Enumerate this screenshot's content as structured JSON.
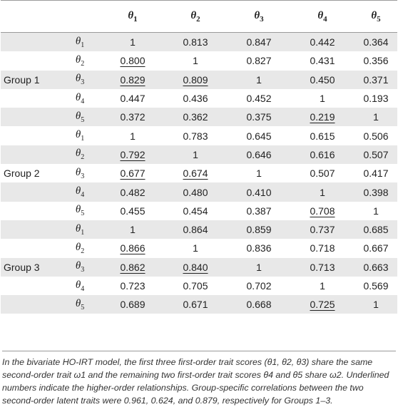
{
  "header": {
    "cols": [
      {
        "sym": "θ",
        "sub": "1"
      },
      {
        "sym": "θ",
        "sub": "2"
      },
      {
        "sym": "θ",
        "sub": "3"
      },
      {
        "sym": "θ",
        "sub": "4"
      },
      {
        "sym": "θ",
        "sub": "5"
      }
    ]
  },
  "rows": [
    {
      "group": "",
      "sym": "θ",
      "sub": "1",
      "cells": [
        {
          "v": "1"
        },
        {
          "v": "0.813"
        },
        {
          "v": "0.847"
        },
        {
          "v": "0.442"
        },
        {
          "v": "0.364"
        }
      ]
    },
    {
      "group": "",
      "sym": "θ",
      "sub": "2",
      "cells": [
        {
          "v": "0.800",
          "u": true
        },
        {
          "v": "1"
        },
        {
          "v": "0.827"
        },
        {
          "v": "0.431"
        },
        {
          "v": "0.356"
        }
      ]
    },
    {
      "group": "Group 1",
      "sym": "θ",
      "sub": "3",
      "cells": [
        {
          "v": "0.829",
          "u": true
        },
        {
          "v": "0.809",
          "u": true
        },
        {
          "v": "1"
        },
        {
          "v": "0.450"
        },
        {
          "v": "0.371"
        }
      ]
    },
    {
      "group": "",
      "sym": "θ",
      "sub": "4",
      "cells": [
        {
          "v": "0.447"
        },
        {
          "v": "0.436"
        },
        {
          "v": "0.452"
        },
        {
          "v": "1"
        },
        {
          "v": "0.193"
        }
      ]
    },
    {
      "group": "",
      "sym": "θ",
      "sub": "5",
      "cells": [
        {
          "v": "0.372"
        },
        {
          "v": "0.362"
        },
        {
          "v": "0.375"
        },
        {
          "v": "0.219",
          "u": true
        },
        {
          "v": "1"
        }
      ]
    },
    {
      "group": "",
      "sym": "θ",
      "sub": "1",
      "cells": [
        {
          "v": "1"
        },
        {
          "v": "0.783"
        },
        {
          "v": "0.645"
        },
        {
          "v": "0.615"
        },
        {
          "v": "0.506"
        }
      ]
    },
    {
      "group": "",
      "sym": "θ",
      "sub": "2",
      "cells": [
        {
          "v": "0.792",
          "u": true
        },
        {
          "v": "1"
        },
        {
          "v": "0.646"
        },
        {
          "v": "0.616"
        },
        {
          "v": "0.507"
        }
      ]
    },
    {
      "group": "Group 2",
      "sym": "θ",
      "sub": "3",
      "cells": [
        {
          "v": "0.677",
          "u": true
        },
        {
          "v": "0.674",
          "u": true
        },
        {
          "v": "1"
        },
        {
          "v": "0.507"
        },
        {
          "v": "0.417"
        }
      ]
    },
    {
      "group": "",
      "sym": "θ",
      "sub": "4",
      "cells": [
        {
          "v": "0.482"
        },
        {
          "v": "0.480"
        },
        {
          "v": "0.410"
        },
        {
          "v": "1"
        },
        {
          "v": "0.398"
        }
      ]
    },
    {
      "group": "",
      "sym": "θ",
      "sub": "5",
      "cells": [
        {
          "v": "0.455"
        },
        {
          "v": "0.454"
        },
        {
          "v": "0.387"
        },
        {
          "v": "0.708",
          "u": true
        },
        {
          "v": "1"
        }
      ]
    },
    {
      "group": "",
      "sym": "θ",
      "sub": "1",
      "cells": [
        {
          "v": "1"
        },
        {
          "v": "0.864"
        },
        {
          "v": "0.859"
        },
        {
          "v": "0.737"
        },
        {
          "v": "0.685"
        }
      ]
    },
    {
      "group": "",
      "sym": "θ",
      "sub": "2",
      "cells": [
        {
          "v": "0.866",
          "u": true
        },
        {
          "v": "1"
        },
        {
          "v": "0.836"
        },
        {
          "v": "0.718"
        },
        {
          "v": "0.667"
        }
      ]
    },
    {
      "group": "Group 3",
      "sym": "θ",
      "sub": "3",
      "cells": [
        {
          "v": "0.862",
          "u": true
        },
        {
          "v": "0.840",
          "u": true
        },
        {
          "v": "1"
        },
        {
          "v": "0.713"
        },
        {
          "v": "0.663"
        }
      ]
    },
    {
      "group": "",
      "sym": "θ",
      "sub": "4",
      "cells": [
        {
          "v": "0.723"
        },
        {
          "v": "0.705"
        },
        {
          "v": "0.702"
        },
        {
          "v": "1"
        },
        {
          "v": "0.569"
        }
      ]
    },
    {
      "group": "",
      "sym": "θ",
      "sub": "5",
      "cells": [
        {
          "v": "0.689"
        },
        {
          "v": "0.671"
        },
        {
          "v": "0.668"
        },
        {
          "v": "0.725",
          "u": true
        },
        {
          "v": "1"
        }
      ]
    }
  ],
  "footnote": "In the bivariate HO-IRT model, the first three first-order trait scores (θ1, θ2, θ3) share the same second-order trait ω1 and the remaining two first-order trait scores θ4 and θ5 share ω2. Underlined numbers indicate the higher-order relationships. Group-specific correlations between the two second-order latent traits were 0.961, 0.624, and 0.879, respectively for Groups 1–3.",
  "colors": {
    "band": "#e8e8e8",
    "rule": "#9a9a9a"
  }
}
